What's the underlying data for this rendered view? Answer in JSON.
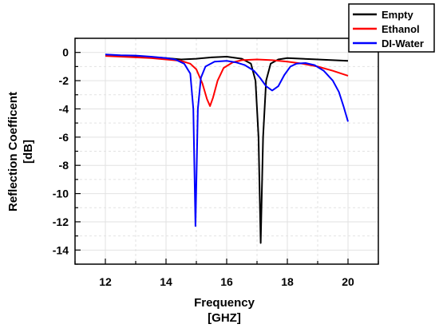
{
  "chart_data": {
    "type": "line",
    "title": "",
    "xlabel": "Frequency",
    "xlabel_unit": "[GHZ]",
    "ylabel": "Reflection Coefficent",
    "ylabel_unit": "[dB]",
    "xlim": [
      11,
      21
    ],
    "ylim": [
      -15,
      1
    ],
    "xticks": [
      12,
      14,
      16,
      18,
      20
    ],
    "yticks": [
      0,
      -2,
      -4,
      -6,
      -8,
      -10,
      -12,
      -14
    ],
    "grid": true,
    "legend_position": "top-right (outside plot)",
    "series": [
      {
        "name": "Empty",
        "color": "#000000",
        "points": [
          [
            12.0,
            -0.2
          ],
          [
            13.0,
            -0.25
          ],
          [
            14.0,
            -0.4
          ],
          [
            14.5,
            -0.5
          ],
          [
            15.0,
            -0.45
          ],
          [
            15.5,
            -0.35
          ],
          [
            16.0,
            -0.3
          ],
          [
            16.5,
            -0.45
          ],
          [
            16.8,
            -0.8
          ],
          [
            16.95,
            -2.0
          ],
          [
            17.05,
            -6.0
          ],
          [
            17.12,
            -13.5
          ],
          [
            17.2,
            -6.0
          ],
          [
            17.3,
            -2.0
          ],
          [
            17.45,
            -0.8
          ],
          [
            17.7,
            -0.5
          ],
          [
            18.0,
            -0.4
          ],
          [
            18.5,
            -0.45
          ],
          [
            19.0,
            -0.5
          ],
          [
            19.5,
            -0.55
          ],
          [
            20.0,
            -0.6
          ]
        ]
      },
      {
        "name": "Ethanol",
        "color": "#ff0000",
        "points": [
          [
            12.0,
            -0.25
          ],
          [
            12.5,
            -0.3
          ],
          [
            13.0,
            -0.35
          ],
          [
            13.5,
            -0.4
          ],
          [
            14.0,
            -0.5
          ],
          [
            14.5,
            -0.6
          ],
          [
            14.8,
            -0.8
          ],
          [
            15.0,
            -1.2
          ],
          [
            15.2,
            -2.2
          ],
          [
            15.35,
            -3.3
          ],
          [
            15.45,
            -3.8
          ],
          [
            15.55,
            -3.2
          ],
          [
            15.7,
            -2.0
          ],
          [
            15.9,
            -1.1
          ],
          [
            16.2,
            -0.7
          ],
          [
            16.5,
            -0.55
          ],
          [
            17.0,
            -0.5
          ],
          [
            17.5,
            -0.55
          ],
          [
            18.0,
            -0.65
          ],
          [
            18.5,
            -0.8
          ],
          [
            19.0,
            -1.0
          ],
          [
            19.5,
            -1.3
          ],
          [
            20.0,
            -1.65
          ]
        ]
      },
      {
        "name": "DI-Water",
        "color": "#0000ff",
        "points": [
          [
            12.0,
            -0.15
          ],
          [
            12.5,
            -0.2
          ],
          [
            13.0,
            -0.22
          ],
          [
            13.5,
            -0.3
          ],
          [
            14.0,
            -0.4
          ],
          [
            14.3,
            -0.5
          ],
          [
            14.6,
            -0.8
          ],
          [
            14.8,
            -1.5
          ],
          [
            14.9,
            -4.0
          ],
          [
            14.97,
            -12.3
          ],
          [
            15.05,
            -4.0
          ],
          [
            15.15,
            -1.8
          ],
          [
            15.3,
            -1.0
          ],
          [
            15.6,
            -0.65
          ],
          [
            16.0,
            -0.6
          ],
          [
            16.3,
            -0.7
          ],
          [
            16.6,
            -0.9
          ],
          [
            16.9,
            -1.3
          ],
          [
            17.1,
            -1.8
          ],
          [
            17.3,
            -2.4
          ],
          [
            17.5,
            -2.7
          ],
          [
            17.7,
            -2.4
          ],
          [
            17.9,
            -1.6
          ],
          [
            18.1,
            -1.0
          ],
          [
            18.3,
            -0.8
          ],
          [
            18.6,
            -0.75
          ],
          [
            18.9,
            -0.9
          ],
          [
            19.2,
            -1.3
          ],
          [
            19.5,
            -2.0
          ],
          [
            19.7,
            -2.8
          ],
          [
            19.85,
            -3.8
          ],
          [
            20.0,
            -4.9
          ]
        ]
      }
    ]
  }
}
